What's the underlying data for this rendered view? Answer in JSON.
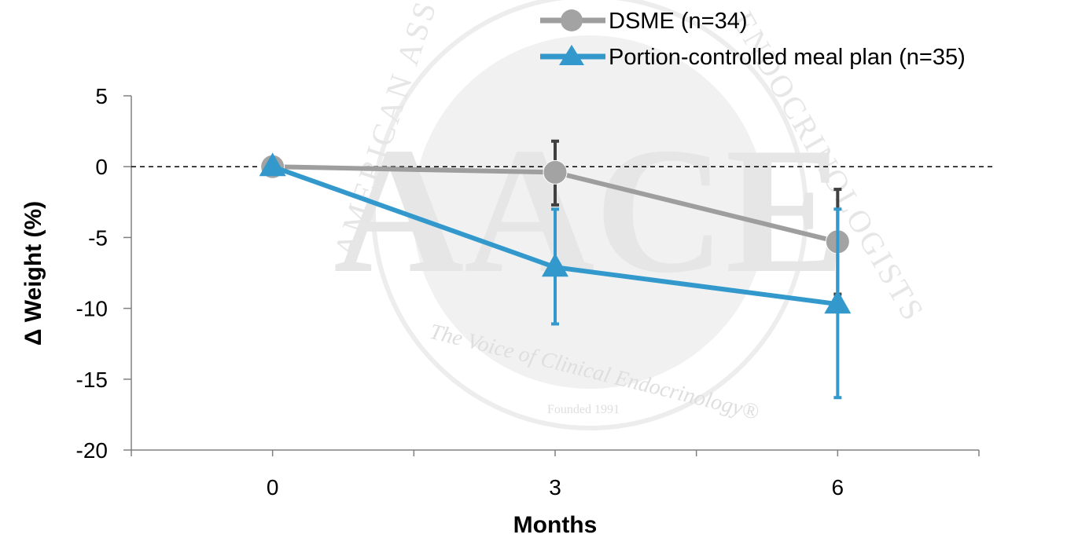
{
  "colors": {
    "dsme": "#9e9e9e",
    "dsme_marker": "#a3a3a3",
    "dsme_error": "#404040",
    "pcmp": "#3399cc",
    "watermark": "#ececec"
  },
  "watermark": {
    "upper_left_text": "AMERICAN ASSO",
    "upper_right_text": "ENDOCRINOLOGISTS",
    "letters": "AACE",
    "tagline": "The Voice of Clinical Endocrinology®",
    "founded": "Founded 1991"
  },
  "chart_data": {
    "type": "line",
    "xlabel": "Months",
    "ylabel": "Δ Weight (%)",
    "x": [
      0,
      3,
      6
    ],
    "x_ticks": [
      "0",
      "3",
      "6"
    ],
    "xlim": [
      -1.5,
      7.5
    ],
    "ylim": [
      -20,
      5
    ],
    "y_ticks": [
      "5",
      "0",
      "-5",
      "-10",
      "-15",
      "-20"
    ],
    "y_tick_values": [
      5,
      0,
      -5,
      -10,
      -15,
      -20
    ],
    "reference_line": 0,
    "grid": false,
    "legend_position": "top-right",
    "series": [
      {
        "name": "DSME (n=34)",
        "marker": "circle",
        "values": [
          0,
          -0.4,
          -5.3
        ],
        "error_low": [
          0,
          -2.7,
          -9.0
        ],
        "error_high": [
          0,
          1.8,
          -1.6
        ]
      },
      {
        "name": "Portion-controlled meal plan (n=35)",
        "marker": "triangle",
        "values": [
          0,
          -7.1,
          -9.7
        ],
        "error_low": [
          0,
          -11.1,
          -16.3
        ],
        "error_high": [
          0,
          -3.0,
          -3.0
        ]
      }
    ]
  }
}
